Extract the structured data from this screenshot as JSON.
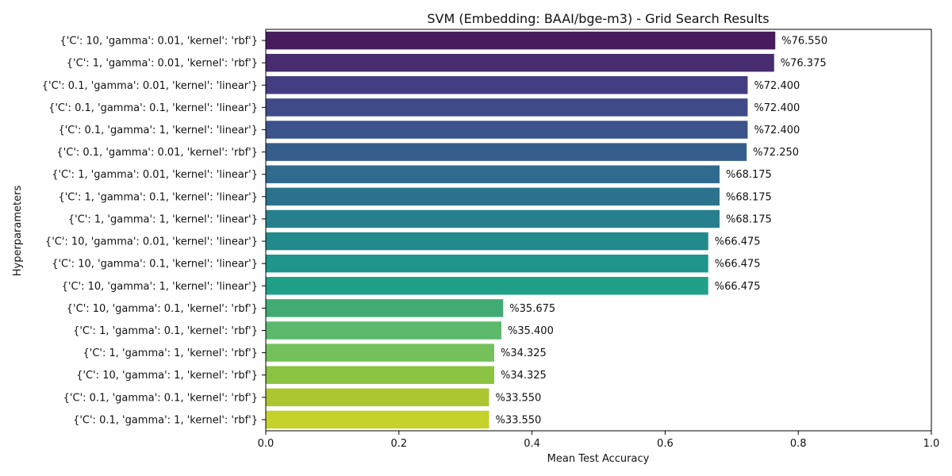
{
  "chart_data": {
    "type": "bar",
    "orientation": "horizontal",
    "title": "SVM (Embedding: BAAI/bge-m3) - Grid Search Results",
    "xlabel": "Mean Test Accuracy",
    "ylabel": "Hyperparameters",
    "xlim": [
      0,
      1.0
    ],
    "xticks": [
      "0.0",
      "0.2",
      "0.4",
      "0.6",
      "0.8",
      "1.0"
    ],
    "grid": false,
    "colormap": "viridis",
    "categories": [
      "{'C': 10, 'gamma': 0.01, 'kernel': 'rbf'}",
      "{'C': 1, 'gamma': 0.01, 'kernel': 'rbf'}",
      "{'C': 0.1, 'gamma': 0.01, 'kernel': 'linear'}",
      "{'C': 0.1, 'gamma': 0.1, 'kernel': 'linear'}",
      "{'C': 0.1, 'gamma': 1, 'kernel': 'linear'}",
      "{'C': 0.1, 'gamma': 0.01, 'kernel': 'rbf'}",
      "{'C': 1, 'gamma': 0.01, 'kernel': 'linear'}",
      "{'C': 1, 'gamma': 0.1, 'kernel': 'linear'}",
      "{'C': 1, 'gamma': 1, 'kernel': 'linear'}",
      "{'C': 10, 'gamma': 0.01, 'kernel': 'linear'}",
      "{'C': 10, 'gamma': 0.1, 'kernel': 'linear'}",
      "{'C': 10, 'gamma': 1, 'kernel': 'linear'}",
      "{'C': 10, 'gamma': 0.1, 'kernel': 'rbf'}",
      "{'C': 1, 'gamma': 0.1, 'kernel': 'rbf'}",
      "{'C': 1, 'gamma': 1, 'kernel': 'rbf'}",
      "{'C': 10, 'gamma': 1, 'kernel': 'rbf'}",
      "{'C': 0.1, 'gamma': 0.1, 'kernel': 'rbf'}",
      "{'C': 0.1, 'gamma': 1, 'kernel': 'rbf'}"
    ],
    "values": [
      0.7655,
      0.76375,
      0.724,
      0.724,
      0.724,
      0.7225,
      0.68175,
      0.68175,
      0.68175,
      0.66475,
      0.66475,
      0.66475,
      0.35675,
      0.354,
      0.34325,
      0.34325,
      0.3355,
      0.3355
    ],
    "data_labels": [
      "%76.550",
      "%76.375",
      "%72.400",
      "%72.400",
      "%72.400",
      "%72.250",
      "%68.175",
      "%68.175",
      "%68.175",
      "%66.475",
      "%66.475",
      "%66.475",
      "%35.675",
      "%35.400",
      "%34.325",
      "%34.325",
      "%33.550",
      "%33.550"
    ],
    "colors": [
      "#481b5f",
      "#472c6f",
      "#433e83",
      "#3f4a89",
      "#3b528b",
      "#355e8d",
      "#306a8e",
      "#2c728e",
      "#277f8e",
      "#22898c",
      "#1f958b",
      "#20a187",
      "#42ab74",
      "#5cb96c",
      "#74c15b",
      "#8bc443",
      "#acc632",
      "#c5d22b"
    ]
  }
}
